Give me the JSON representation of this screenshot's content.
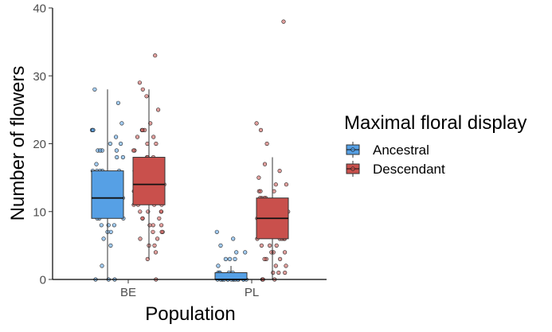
{
  "chart_data": {
    "type": "boxplot",
    "title": "",
    "xlabel": "Population",
    "ylabel": "Number of flowers",
    "ylim": [
      0,
      40
    ],
    "yticks": [
      0,
      10,
      20,
      30,
      40
    ],
    "categories": [
      "BE",
      "PL"
    ],
    "legend": {
      "title": "Maximal floral display",
      "position": "right"
    },
    "series": [
      {
        "name": "Ancestral",
        "color": "#56a0e5",
        "boxes": [
          {
            "category": "BE",
            "min": 0,
            "q1": 9,
            "median": 12,
            "q3": 16,
            "max": 28,
            "points": [
              28,
              26,
              23,
              22,
              22,
              22,
              21,
              20,
              20,
              19,
              19,
              19,
              19,
              18,
              18,
              17,
              16,
              16,
              16,
              16,
              16,
              15,
              15,
              15,
              14,
              14,
              14,
              14,
              13,
              13,
              13,
              12,
              12,
              12,
              12,
              11,
              11,
              11,
              10,
              10,
              10,
              10,
              9,
              9,
              9,
              8,
              8,
              8,
              7,
              7,
              6,
              5,
              2,
              0,
              0,
              0
            ]
          },
          {
            "category": "PL",
            "min": 0,
            "q1": 0,
            "median": 0,
            "q3": 1,
            "max": 2,
            "points": [
              7,
              6,
              5,
              4,
              4,
              3,
              3,
              3,
              2,
              1,
              1,
              1,
              1,
              1,
              0,
              0,
              0,
              0,
              0,
              0,
              0,
              0,
              0,
              0,
              0,
              0,
              0,
              0,
              0,
              0
            ]
          }
        ]
      },
      {
        "name": "Descendant",
        "color": "#c9504c",
        "boxes": [
          {
            "category": "BE",
            "min": 3,
            "q1": 11,
            "median": 14,
            "q3": 18,
            "max": 28,
            "points": [
              33,
              29,
              28,
              27,
              25,
              23,
              22,
              22,
              22,
              21,
              21,
              20,
              20,
              19,
              19,
              18,
              18,
              18,
              17,
              17,
              17,
              16,
              16,
              16,
              16,
              15,
              15,
              15,
              15,
              14,
              14,
              14,
              14,
              14,
              13,
              13,
              13,
              13,
              12,
              12,
              12,
              12,
              11,
              11,
              11,
              11,
              10,
              10,
              10,
              10,
              9,
              9,
              9,
              8,
              8,
              8,
              7,
              7,
              7,
              6,
              6,
              5,
              5,
              4,
              3,
              0
            ]
          },
          {
            "category": "PL",
            "min": 0,
            "q1": 6,
            "median": 9,
            "q3": 12,
            "max": 18,
            "points": [
              38,
              23,
              22,
              20,
              17,
              16,
              15,
              14,
              14,
              13,
              13,
              13,
              12,
              12,
              12,
              12,
              11,
              11,
              11,
              11,
              10,
              10,
              10,
              10,
              10,
              9,
              9,
              9,
              9,
              9,
              8,
              8,
              8,
              8,
              7,
              7,
              7,
              7,
              6,
              6,
              6,
              6,
              6,
              5,
              5,
              5,
              4,
              4,
              4,
              3,
              3,
              3,
              2,
              2,
              1,
              1,
              1,
              0,
              0,
              0
            ]
          }
        ]
      }
    ]
  }
}
